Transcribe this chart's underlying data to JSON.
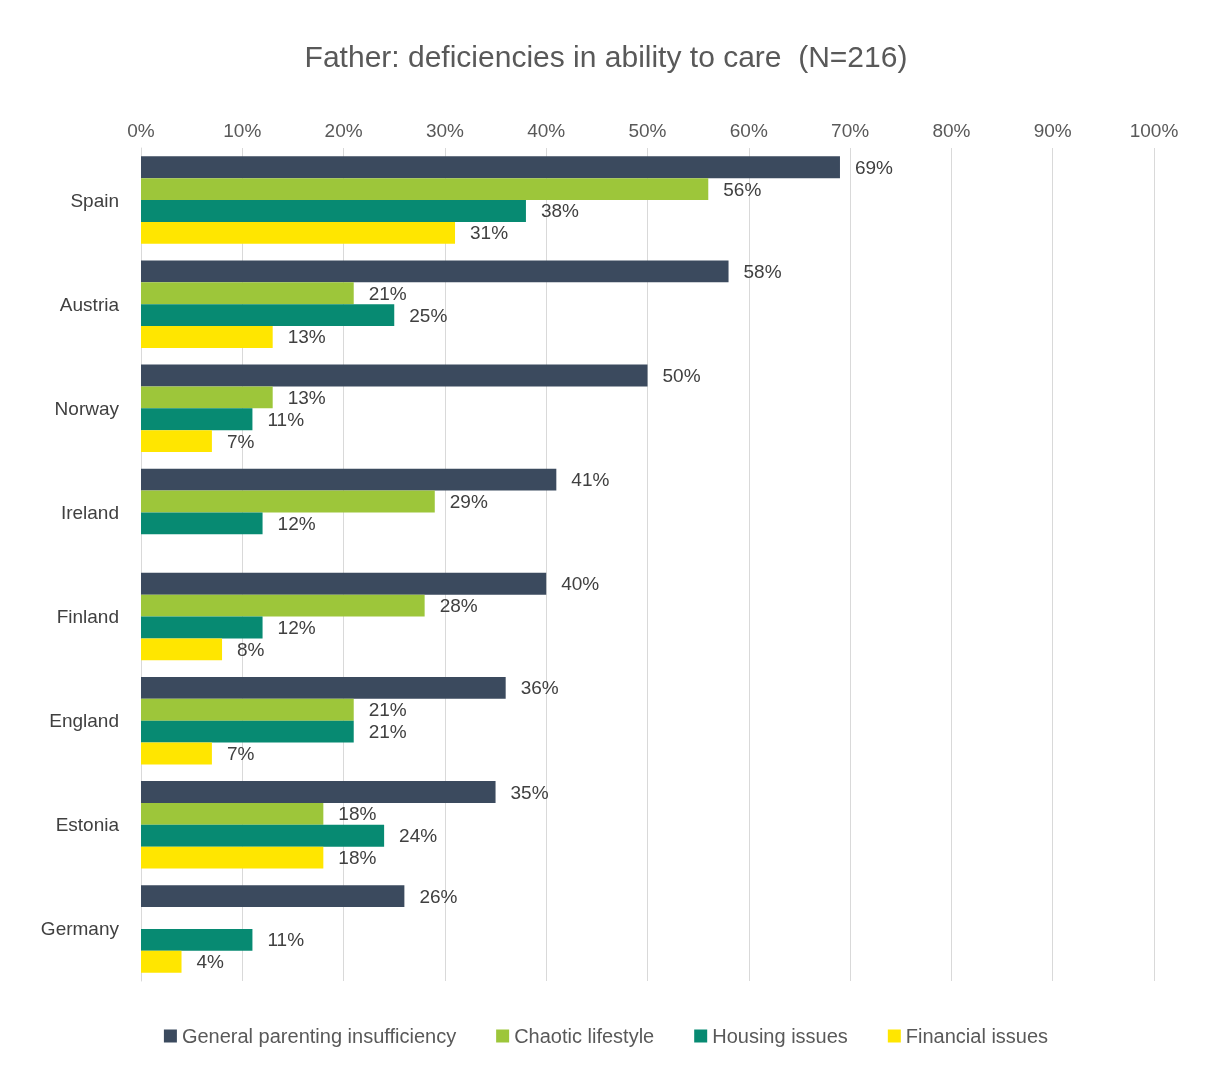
{
  "chart_data": {
    "type": "bar",
    "orientation": "horizontal",
    "title": "Father: deficiencies in ability to care  (N=216)",
    "categories": [
      "Spain",
      "Austria",
      "Norway",
      "Ireland",
      "Finland",
      "England",
      "Estonia",
      "Germany"
    ],
    "series": [
      {
        "name": "General parenting insufficiency",
        "color": "#3b4a5e",
        "values": [
          69,
          58,
          50,
          41,
          40,
          36,
          35,
          26
        ],
        "value_labels": [
          "69%",
          "58%",
          "50%",
          "41%",
          "40%",
          "36%",
          "35%",
          "26%"
        ]
      },
      {
        "name": "Chaotic lifestyle",
        "color": "#9dc63a",
        "values": [
          56,
          21,
          13,
          29,
          28,
          21,
          18,
          null
        ],
        "value_labels": [
          "56%",
          "21%",
          "13%",
          "29%",
          "28%",
          "21%",
          "18%",
          null
        ]
      },
      {
        "name": "Housing issues",
        "color": "#078a72",
        "values": [
          38,
          25,
          11,
          12,
          12,
          21,
          24,
          11
        ],
        "value_labels": [
          "38%",
          "25%",
          "11%",
          "12%",
          "12%",
          "21%",
          "24%",
          "11%"
        ]
      },
      {
        "name": "Financial issues",
        "color": "#ffe600",
        "values": [
          31,
          13,
          7,
          null,
          8,
          7,
          18,
          4
        ],
        "value_labels": [
          "31%",
          "13%",
          "7%",
          null,
          "8%",
          "7%",
          "18%",
          "4%"
        ]
      }
    ],
    "xlim": [
      0,
      100
    ],
    "xticks": [
      {
        "value": 0,
        "label": "0%"
      },
      {
        "value": 10,
        "label": "10%"
      },
      {
        "value": 20,
        "label": "20%"
      },
      {
        "value": 30,
        "label": "30%"
      },
      {
        "value": 40,
        "label": "40%"
      },
      {
        "value": 50,
        "label": "50%"
      },
      {
        "value": 60,
        "label": "60%"
      },
      {
        "value": 70,
        "label": "70%"
      },
      {
        "value": 80,
        "label": "80%"
      },
      {
        "value": 90,
        "label": "90%"
      },
      {
        "value": 100,
        "label": "100%"
      }
    ],
    "grid": "x",
    "legend": "bottom"
  }
}
